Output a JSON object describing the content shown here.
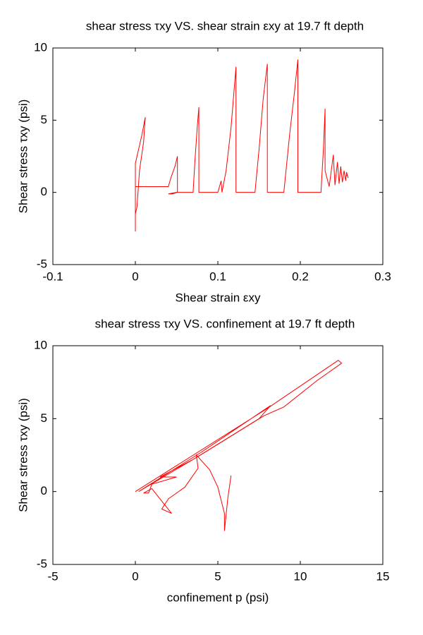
{
  "chart_data": [
    {
      "type": "line",
      "title": "shear stress τxy VS. shear strain εxy at 19.7 ft depth",
      "x_label": "Shear strain εxy",
      "y_label": "Shear stress τxy (psi)",
      "x": [
        0,
        0,
        0,
        0,
        0.004,
        0.008,
        0.012,
        0.01,
        0.005,
        0.002,
        0,
        0,
        0.02,
        0.04,
        0.043,
        0.048,
        0.051,
        0.051,
        0.045,
        0.04,
        0.05,
        0.07,
        0.072,
        0.075,
        0.077,
        0.077,
        0.1,
        0.104,
        0.105,
        0.11,
        0.116,
        0.122,
        0.122,
        0.145,
        0.15,
        0.155,
        0.16,
        0.16,
        0.18,
        0.187,
        0.193,
        0.197,
        0.197,
        0.225,
        0.228,
        0.23,
        0.23,
        0.235,
        0.24,
        0.242,
        0.245,
        0.247,
        0.249,
        0.251,
        0.253,
        0.255,
        0.256,
        0.258,
        0.257,
        0.255
      ],
      "series": [
        {
          "color": "#ff0000",
          "values": [
            0.5,
            -2.7,
            0,
            2,
            3,
            4,
            5.2,
            3.5,
            1.5,
            -1,
            -1.5,
            0.4,
            0.4,
            0.4,
            1,
            1.8,
            2.5,
            0,
            -0.1,
            -0.1,
            0,
            0,
            2,
            4.5,
            5.9,
            0,
            0,
            0.8,
            0,
            1.5,
            4.5,
            8.7,
            0,
            0,
            3,
            6.5,
            8.9,
            0,
            0,
            4,
            7,
            9.2,
            0,
            0,
            3,
            5.8,
            1.5,
            0.4,
            2.6,
            0.5,
            2.1,
            0.6,
            1.8,
            0.7,
            1.5,
            0.8,
            1.4,
            1,
            1.2,
            1.1
          ]
        }
      ],
      "xlim": [
        -0.1,
        0.3
      ],
      "xticks": [
        -0.1,
        0,
        0.1,
        0.2,
        0.3
      ],
      "ylim": [
        -5,
        10
      ],
      "yticks": [
        -5,
        0,
        5,
        10
      ],
      "grid": false
    },
    {
      "type": "line",
      "title": "shear stress τxy VS. confinement at 19.7 ft depth",
      "x_label": "confinement p (psi)",
      "y_label": "Shear stress τxy (psi)",
      "x": [
        0,
        8,
        12.3,
        12.5,
        11,
        9,
        7.8,
        3.8,
        0.2,
        4,
        8.2,
        7.5,
        3.5,
        1.5,
        2.5,
        1,
        0.8,
        0.5,
        1,
        1.7,
        2.2,
        1.6,
        2,
        3,
        3.8,
        3.7,
        4.5,
        5,
        5.4,
        5.4,
        5.6,
        5.8
      ],
      "series": [
        {
          "color": "#ff0000",
          "values": [
            0,
            5.7,
            9,
            8.8,
            7.6,
            5.8,
            5.2,
            2.4,
            0,
            2.7,
            5.9,
            5,
            2.2,
            1,
            1,
            0.5,
            -0.1,
            -0.1,
            0.2,
            -0.8,
            -1.5,
            -1.2,
            -0.5,
            0.3,
            1.6,
            2.5,
            1.5,
            0.3,
            -1.5,
            -2.7,
            -0.5,
            1.1
          ]
        }
      ],
      "xlim": [
        -5,
        15
      ],
      "xticks": [
        -5,
        0,
        5,
        10,
        15
      ],
      "ylim": [
        -5,
        10
      ],
      "yticks": [
        -5,
        0,
        5,
        10
      ],
      "grid": false
    }
  ]
}
